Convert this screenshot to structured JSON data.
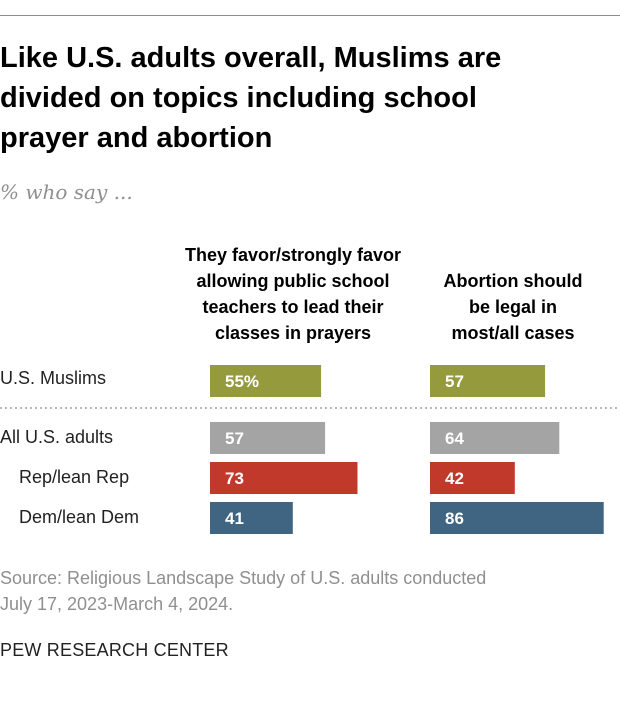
{
  "header": {
    "title_lines": [
      "Like U.S. adults overall, Muslims are",
      "divided on topics including school",
      "prayer and abortion"
    ],
    "subtitle": "% who say ..."
  },
  "chart_data": {
    "type": "bar",
    "orientation": "horizontal",
    "title": "Like U.S. adults overall, Muslims are divided on topics including school prayer and abortion",
    "subtitle": "% who say ...",
    "unit": "%",
    "xlim": [
      0,
      100
    ],
    "categories": [
      "U.S. Muslims",
      "All U.S. adults",
      "Rep/lean Rep",
      "Dem/lean Dem"
    ],
    "value_labels": [
      [
        "55%",
        "57"
      ],
      [
        "57",
        "64"
      ],
      [
        "73",
        "42"
      ],
      [
        "41",
        "86"
      ]
    ],
    "bar_colors": [
      "#959b3c",
      "#a4a4a4",
      "#c1392b",
      "#3f6583"
    ],
    "series": [
      {
        "name": "They favor/strongly favor allowing public school teachers to lead their classes in prayers",
        "header_lines": [
          "They favor/strongly favor",
          "allowing public school",
          "teachers to lead their",
          "classes in prayers"
        ],
        "values": [
          55,
          57,
          73,
          41
        ]
      },
      {
        "name": "Abortion should be legal in most/all cases",
        "header_lines": [
          "Abortion should",
          "be legal in",
          "most/all cases"
        ],
        "values": [
          57,
          64,
          42,
          86
        ]
      }
    ]
  },
  "footer": {
    "source_lines": [
      "Source: Religious Landscape Study of U.S. adults conducted",
      "July 17, 2023-March 4, 2024."
    ],
    "org": "PEW RESEARCH CENTER"
  }
}
